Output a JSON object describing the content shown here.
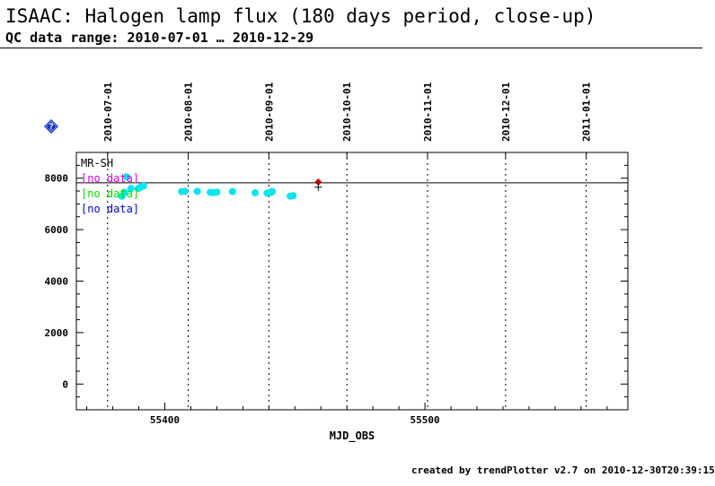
{
  "header": {
    "title": "ISAAC: Halogen lamp flux (180 days period, close-up)",
    "subtitle": "QC data range: 2010-07-01 … 2010-12-29"
  },
  "footer": {
    "credit": "created by trendPlotter v2.7 on 2010-12-30T20:39:15"
  },
  "help_icon": {
    "name": "help-diamond-icon",
    "color": "#1030c0"
  },
  "chart_data": {
    "type": "scatter",
    "xlabel": "MJD_OBS",
    "ylabel": "",
    "xlim": [
      55366,
      55578
    ],
    "ylim": [
      -1000,
      9000
    ],
    "x_ticks": [
      55400,
      55500
    ],
    "y_ticks": [
      0,
      2000,
      4000,
      6000,
      8000
    ],
    "date_ticks": [
      {
        "label": "2010-07-01",
        "mjd": 55378
      },
      {
        "label": "2010-08-01",
        "mjd": 55409
      },
      {
        "label": "2010-09-01",
        "mjd": 55440
      },
      {
        "label": "2010-10-01",
        "mjd": 55470
      },
      {
        "label": "2010-11-01",
        "mjd": 55501
      },
      {
        "label": "2010-12-01",
        "mjd": 55531
      },
      {
        "label": "2011-01-01",
        "mjd": 55562
      }
    ],
    "reference_line": 7820,
    "legend": [
      {
        "text": "MR-SH",
        "color": "#000000"
      },
      {
        "text": "[no data]",
        "color": "#e000e0"
      },
      {
        "text": "[no data]",
        "color": "#00e000"
      },
      {
        "text": "[no data]",
        "color": "#0000e0"
      }
    ],
    "series": [
      {
        "name": "MR-SH",
        "color": "#00e8f0",
        "x": [
          55383.5,
          55384.5,
          55385.3,
          55387,
          55389.8,
          55390.7,
          55391.8,
          55406.5,
          55407.7,
          55412.5,
          55417.5,
          55418.6,
          55420,
          55426,
          55434.7,
          55439.3,
          55440.6,
          55441.3,
          55448.2,
          55449.3
        ],
        "y": [
          7300,
          7450,
          8050,
          7600,
          7600,
          7650,
          7700,
          7480,
          7490,
          7490,
          7450,
          7440,
          7460,
          7480,
          7430,
          7420,
          7440,
          7480,
          7300,
          7320
        ]
      }
    ],
    "latest_point": {
      "x": 55459,
      "y": 7850,
      "color": "#c80000"
    },
    "cross_marker": {
      "x": 55459,
      "y": 7650
    }
  }
}
